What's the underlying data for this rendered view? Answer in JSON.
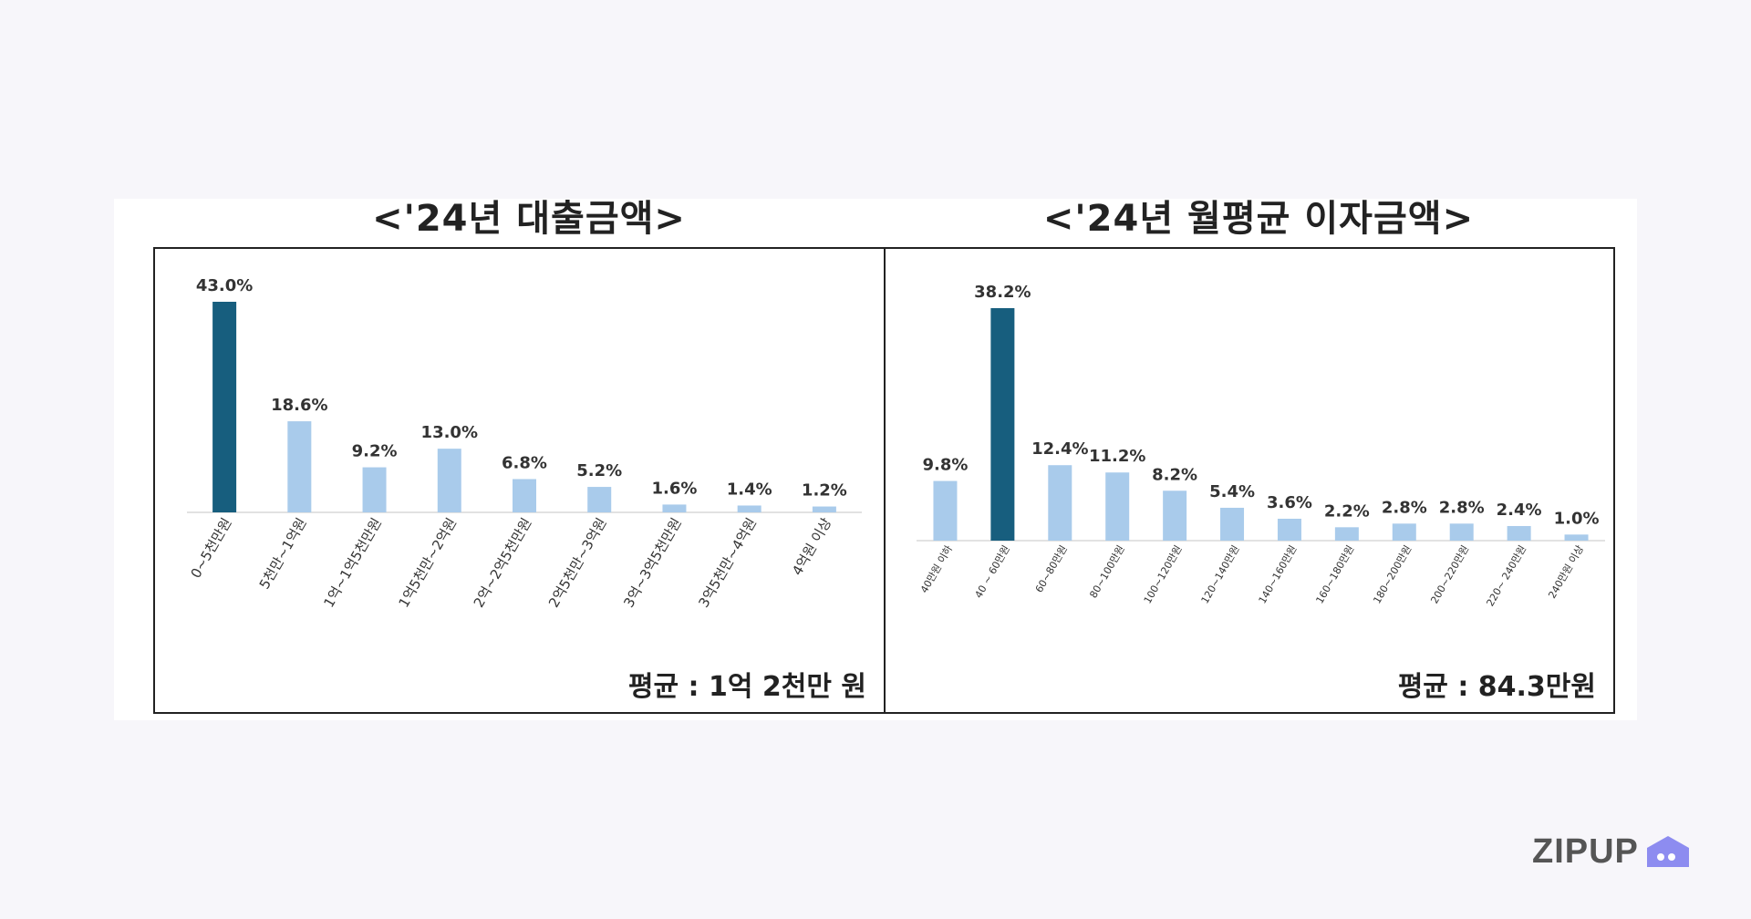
{
  "chart_data": [
    {
      "type": "bar",
      "title": "<'24년 대출금액>",
      "categories": [
        "0~5천만원",
        "5천만~1억원",
        "1억~1억5천만원",
        "1억5천만~2억원",
        "2억~2억5천만원",
        "2억5천만~3억원",
        "3억~3억5천만원",
        "3억5천만~4억원",
        "4억원 이상"
      ],
      "values": [
        43.0,
        18.6,
        9.2,
        13.0,
        6.8,
        5.2,
        1.6,
        1.4,
        1.2
      ],
      "value_labels": [
        "43.0%",
        "18.6%",
        "9.2%",
        "13.0%",
        "6.8%",
        "5.2%",
        "1.6%",
        "1.4%",
        "1.2%"
      ],
      "highlight_index": 0,
      "unit": "%",
      "note": "평균 : 1억 2천만 원",
      "grid": false
    },
    {
      "type": "bar",
      "title": "<'24년 월평균 이자금액>",
      "categories": [
        "40만원 이하",
        "40 ~ 60만원",
        "60~80만원",
        "80~100만원",
        "100~120만원",
        "120~140만원",
        "140~160만원",
        "160~180만원",
        "180~200만원",
        "200~220만원",
        "220~ 240만원",
        "240만원 이상"
      ],
      "values": [
        9.8,
        38.2,
        12.4,
        11.2,
        8.2,
        5.4,
        3.6,
        2.2,
        2.8,
        2.8,
        2.4,
        1.0
      ],
      "value_labels": [
        "9.8%",
        "38.2%",
        "12.4%",
        "11.2%",
        "8.2%",
        "5.4%",
        "3.6%",
        "2.2%",
        "2.8%",
        "2.8%",
        "2.4%",
        "1.0%"
      ],
      "highlight_index": 1,
      "unit": "%",
      "note": "평균 : 84.3만원",
      "grid": false
    }
  ],
  "colors": {
    "highlight_bar": "#175e7e",
    "bar": "#a9cbeb",
    "baseline": "#d9d9d9",
    "logo_icon": "#8d8cf0"
  },
  "logo": {
    "text": "ZIPUP",
    "icon": "house-icon"
  }
}
